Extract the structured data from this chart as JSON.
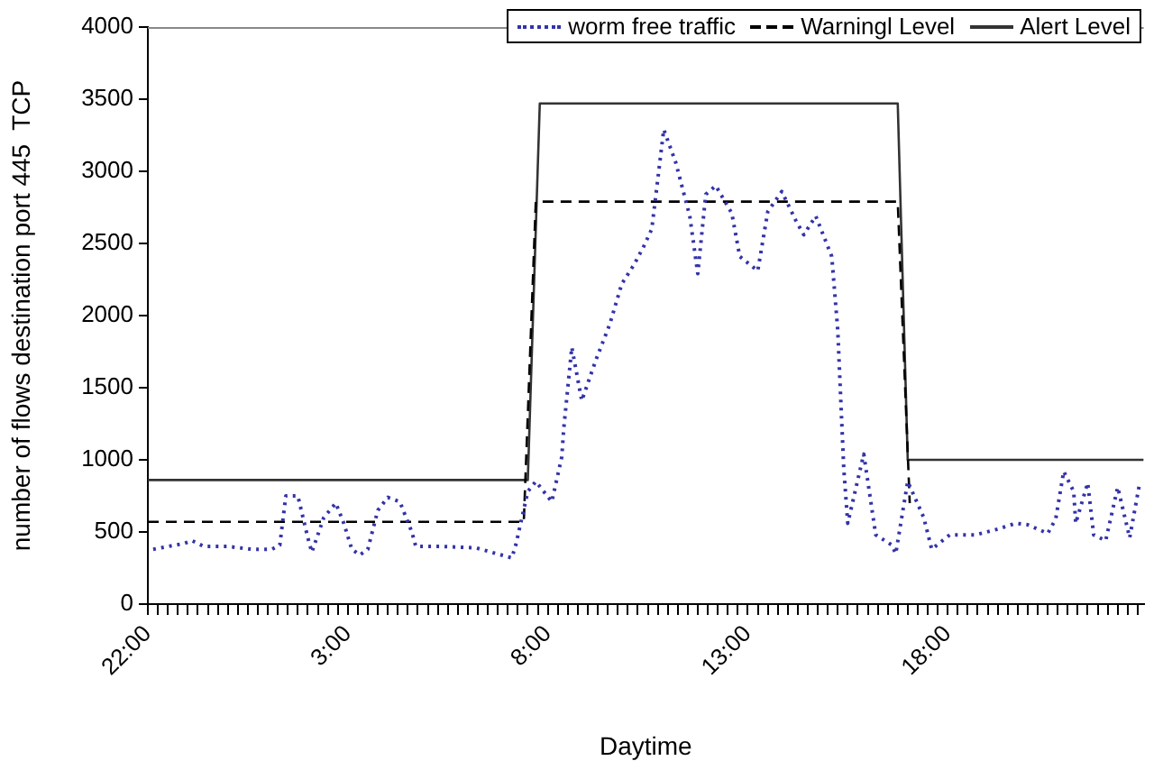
{
  "chart_data": {
    "type": "line",
    "xlabel": "Daytime",
    "ylabel": "number of flows destination port 445  TCP",
    "legend": "top right",
    "grid": false,
    "marker": "none",
    "xlim": [
      "2000-01-01T22:00",
      "2000-01-02T22:54"
    ],
    "ylim": [
      0,
      4000
    ],
    "yticks": [
      0,
      500,
      1000,
      1500,
      2000,
      2500,
      3000,
      3500,
      4000
    ],
    "xticks": [
      {
        "value": "2000-01-01T22:00",
        "label": "22:00"
      },
      {
        "value": "2000-01-01T22:15",
        "label": null
      },
      {
        "value": "2000-01-01T22:30",
        "label": null
      },
      {
        "value": "2000-01-01T22:45",
        "label": null
      },
      {
        "value": "2000-01-01T23:00",
        "label": null
      },
      {
        "value": "2000-01-01T23:15",
        "label": null
      },
      {
        "value": "2000-01-01T23:30",
        "label": null
      },
      {
        "value": "2000-01-01T23:45",
        "label": null
      },
      {
        "value": "2000-01-02T00:00",
        "label": null
      },
      {
        "value": "2000-01-02T00:15",
        "label": null
      },
      {
        "value": "2000-01-02T00:30",
        "label": null
      },
      {
        "value": "2000-01-02T00:45",
        "label": null
      },
      {
        "value": "2000-01-02T01:00",
        "label": null
      },
      {
        "value": "2000-01-02T01:15",
        "label": null
      },
      {
        "value": "2000-01-02T01:30",
        "label": null
      },
      {
        "value": "2000-01-02T01:45",
        "label": null
      },
      {
        "value": "2000-01-02T02:00",
        "label": null
      },
      {
        "value": "2000-01-02T02:15",
        "label": null
      },
      {
        "value": "2000-01-02T02:30",
        "label": null
      },
      {
        "value": "2000-01-02T02:45",
        "label": null
      },
      {
        "value": "2000-01-02T03:00",
        "label": "3:00"
      },
      {
        "value": "2000-01-02T03:15",
        "label": null
      },
      {
        "value": "2000-01-02T03:30",
        "label": null
      },
      {
        "value": "2000-01-02T03:45",
        "label": null
      },
      {
        "value": "2000-01-02T04:00",
        "label": null
      },
      {
        "value": "2000-01-02T04:15",
        "label": null
      },
      {
        "value": "2000-01-02T04:30",
        "label": null
      },
      {
        "value": "2000-01-02T04:45",
        "label": null
      },
      {
        "value": "2000-01-02T05:00",
        "label": null
      },
      {
        "value": "2000-01-02T05:15",
        "label": null
      },
      {
        "value": "2000-01-02T05:30",
        "label": null
      },
      {
        "value": "2000-01-02T05:45",
        "label": null
      },
      {
        "value": "2000-01-02T06:00",
        "label": null
      },
      {
        "value": "2000-01-02T06:15",
        "label": null
      },
      {
        "value": "2000-01-02T06:30",
        "label": null
      },
      {
        "value": "2000-01-02T06:45",
        "label": null
      },
      {
        "value": "2000-01-02T07:00",
        "label": null
      },
      {
        "value": "2000-01-02T07:15",
        "label": null
      },
      {
        "value": "2000-01-02T07:30",
        "label": null
      },
      {
        "value": "2000-01-02T07:45",
        "label": null
      },
      {
        "value": "2000-01-02T08:00",
        "label": "8:00"
      },
      {
        "value": "2000-01-02T08:15",
        "label": null
      },
      {
        "value": "2000-01-02T08:30",
        "label": null
      },
      {
        "value": "2000-01-02T08:45",
        "label": null
      },
      {
        "value": "2000-01-02T09:00",
        "label": null
      },
      {
        "value": "2000-01-02T09:15",
        "label": null
      },
      {
        "value": "2000-01-02T09:30",
        "label": null
      },
      {
        "value": "2000-01-02T09:45",
        "label": null
      },
      {
        "value": "2000-01-02T10:00",
        "label": null
      },
      {
        "value": "2000-01-02T10:15",
        "label": null
      },
      {
        "value": "2000-01-02T10:30",
        "label": null
      },
      {
        "value": "2000-01-02T10:45",
        "label": null
      },
      {
        "value": "2000-01-02T11:00",
        "label": null
      },
      {
        "value": "2000-01-02T11:15",
        "label": null
      },
      {
        "value": "2000-01-02T11:30",
        "label": null
      },
      {
        "value": "2000-01-02T11:45",
        "label": null
      },
      {
        "value": "2000-01-02T12:00",
        "label": null
      },
      {
        "value": "2000-01-02T12:15",
        "label": null
      },
      {
        "value": "2000-01-02T12:30",
        "label": null
      },
      {
        "value": "2000-01-02T12:45",
        "label": null
      },
      {
        "value": "2000-01-02T13:00",
        "label": "13:00"
      },
      {
        "value": "2000-01-02T13:15",
        "label": null
      },
      {
        "value": "2000-01-02T13:30",
        "label": null
      },
      {
        "value": "2000-01-02T13:45",
        "label": null
      },
      {
        "value": "2000-01-02T14:00",
        "label": null
      },
      {
        "value": "2000-01-02T14:15",
        "label": null
      },
      {
        "value": "2000-01-02T14:30",
        "label": null
      },
      {
        "value": "2000-01-02T14:45",
        "label": null
      },
      {
        "value": "2000-01-02T15:00",
        "label": null
      },
      {
        "value": "2000-01-02T15:15",
        "label": null
      },
      {
        "value": "2000-01-02T15:30",
        "label": null
      },
      {
        "value": "2000-01-02T15:45",
        "label": null
      },
      {
        "value": "2000-01-02T16:00",
        "label": null
      },
      {
        "value": "2000-01-02T16:15",
        "label": null
      },
      {
        "value": "2000-01-02T16:30",
        "label": null
      },
      {
        "value": "2000-01-02T16:45",
        "label": null
      },
      {
        "value": "2000-01-02T17:00",
        "label": null
      },
      {
        "value": "2000-01-02T17:15",
        "label": null
      },
      {
        "value": "2000-01-02T17:30",
        "label": null
      },
      {
        "value": "2000-01-02T17:45",
        "label": null
      },
      {
        "value": "2000-01-02T18:00",
        "label": "18:00"
      },
      {
        "value": "2000-01-02T18:15",
        "label": null
      },
      {
        "value": "2000-01-02T18:30",
        "label": null
      },
      {
        "value": "2000-01-02T18:45",
        "label": null
      },
      {
        "value": "2000-01-02T19:00",
        "label": null
      },
      {
        "value": "2000-01-02T19:15",
        "label": null
      },
      {
        "value": "2000-01-02T19:30",
        "label": null
      },
      {
        "value": "2000-01-02T19:45",
        "label": null
      },
      {
        "value": "2000-01-02T20:00",
        "label": null
      },
      {
        "value": "2000-01-02T20:15",
        "label": null
      },
      {
        "value": "2000-01-02T20:30",
        "label": null
      },
      {
        "value": "2000-01-02T20:45",
        "label": null
      },
      {
        "value": "2000-01-02T21:00",
        "label": null
      },
      {
        "value": "2000-01-02T21:15",
        "label": null
      },
      {
        "value": "2000-01-02T21:30",
        "label": null
      },
      {
        "value": "2000-01-02T21:45",
        "label": null
      },
      {
        "value": "2000-01-02T22:00",
        "label": null
      },
      {
        "value": "2000-01-02T22:15",
        "label": null
      },
      {
        "value": "2000-01-02T22:30",
        "label": null
      },
      {
        "value": "2000-01-02T22:45",
        "label": null
      }
    ],
    "series": [
      {
        "name": "worm free traffic",
        "color": "#3333aa",
        "line_style": "dotted",
        "x": [
          "2000-01-01T22:08",
          "2000-01-01T22:54",
          "2000-01-01T23:06",
          "2000-01-01T23:24",
          "2000-01-02T00:00",
          "2000-01-02T00:36",
          "2000-01-02T01:06",
          "2000-01-02T01:18",
          "2000-01-02T01:27",
          "2000-01-02T01:45",
          "2000-01-02T02:00",
          "2000-01-02T02:06",
          "2000-01-02T02:24",
          "2000-01-02T02:42",
          "2000-01-02T02:54",
          "2000-01-02T03:06",
          "2000-01-02T03:18",
          "2000-01-02T03:30",
          "2000-01-02T03:45",
          "2000-01-02T04:00",
          "2000-01-02T04:18",
          "2000-01-02T04:36",
          "2000-01-02T04:42",
          "2000-01-02T05:18",
          "2000-01-02T06:12",
          "2000-01-02T07:06",
          "2000-01-02T07:12",
          "2000-01-02T07:30",
          "2000-01-02T07:42",
          "2000-01-02T08:06",
          "2000-01-02T08:21",
          "2000-01-02T08:24",
          "2000-01-02T08:36",
          "2000-01-02T08:51",
          "2000-01-02T09:12",
          "2000-01-02T09:33",
          "2000-01-02T09:51",
          "2000-01-02T10:09",
          "2000-01-02T10:24",
          "2000-01-02T10:36",
          "2000-01-02T10:54",
          "2000-01-02T11:12",
          "2000-01-02T11:33",
          "2000-01-02T11:45",
          "2000-01-02T11:57",
          "2000-01-02T12:12",
          "2000-01-02T12:36",
          "2000-01-02T12:48",
          "2000-01-02T13:15",
          "2000-01-02T13:30",
          "2000-01-02T13:51",
          "2000-01-02T14:12",
          "2000-01-02T14:24",
          "2000-01-02T14:42",
          "2000-01-02T15:06",
          "2000-01-02T15:15",
          "2000-01-02T15:24",
          "2000-01-02T15:30",
          "2000-01-02T15:54",
          "2000-01-02T16:12",
          "2000-01-02T16:36",
          "2000-01-02T16:42",
          "2000-01-02T17:00",
          "2000-01-02T17:24",
          "2000-01-02T17:36",
          "2000-01-02T18:03",
          "2000-01-02T18:42",
          "2000-01-02T19:15",
          "2000-01-02T19:42",
          "2000-01-02T20:00",
          "2000-01-02T20:30",
          "2000-01-02T20:42",
          "2000-01-02T20:54",
          "2000-01-02T21:09",
          "2000-01-02T21:12",
          "2000-01-02T21:30",
          "2000-01-02T21:39",
          "2000-01-02T21:57",
          "2000-01-02T22:15",
          "2000-01-02T22:33",
          "2000-01-02T22:48"
        ],
        "values": [
          380,
          420,
          440,
          400,
          400,
          380,
          380,
          410,
          750,
          750,
          460,
          360,
          600,
          700,
          560,
          380,
          340,
          380,
          650,
          740,
          710,
          500,
          400,
          400,
          390,
          320,
          410,
          780,
          850,
          710,
          1020,
          1220,
          1780,
          1410,
          1690,
          1940,
          2220,
          2350,
          2480,
          2600,
          3290,
          3060,
          2690,
          2290,
          2840,
          2900,
          2710,
          2410,
          2310,
          2720,
          2860,
          2660,
          2560,
          2690,
          2410,
          1900,
          940,
          560,
          1040,
          480,
          410,
          350,
          850,
          600,
          380,
          480,
          480,
          520,
          560,
          550,
          490,
          590,
          920,
          780,
          560,
          840,
          480,
          440,
          810,
          460,
          840
        ]
      },
      {
        "name": "Warningl Level",
        "color": "#000000",
        "line_style": "dashed",
        "x": [
          "2000-01-01T22:00",
          "2000-01-02T07:24",
          "2000-01-02T07:42",
          "2000-01-02T16:45",
          "2000-01-02T17:03"
        ],
        "values": [
          570,
          570,
          2790,
          2790,
          700
        ]
      },
      {
        "name": "Alert Level",
        "color": "#333333",
        "line_style": "solid",
        "x": [
          "2000-01-01T22:00",
          "2000-01-02T07:30",
          "2000-01-02T07:48",
          "2000-01-02T16:45",
          "2000-01-02T17:00",
          "2000-01-02T22:54"
        ],
        "values": [
          860,
          860,
          3470,
          3470,
          1000,
          1000
        ]
      }
    ]
  }
}
